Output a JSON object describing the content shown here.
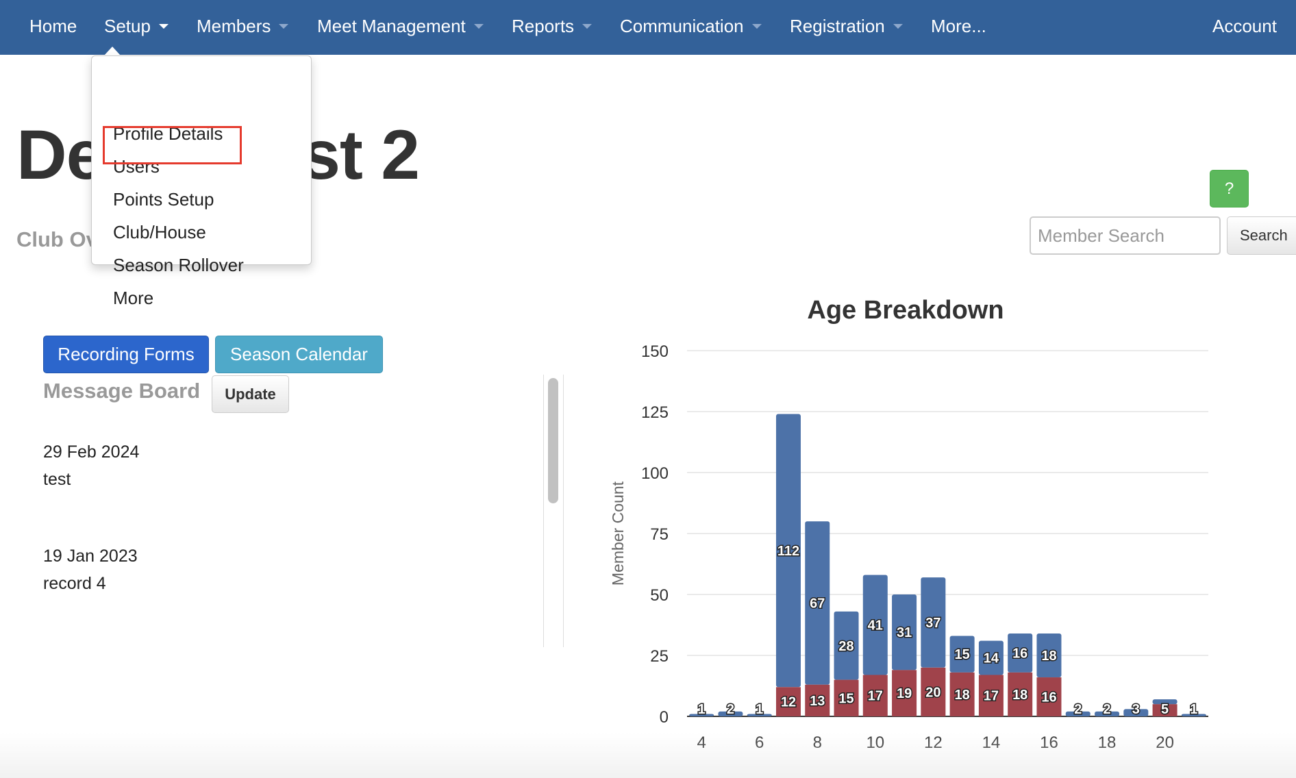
{
  "navbar": {
    "home": "Home",
    "setup": "Setup",
    "members": "Members",
    "meet_management": "Meet Management",
    "reports": "Reports",
    "communication": "Communication",
    "registration": "Registration",
    "more": "More...",
    "account": "Account"
  },
  "setup_menu": {
    "items": [
      "Profile Details",
      "Users",
      "Points Setup",
      "Club/House",
      "Season Rollover",
      "More"
    ],
    "highlighted": "Points Setup"
  },
  "page": {
    "title": "Demo Test 2",
    "subtitle": "Club Overview"
  },
  "help_button": "?",
  "search": {
    "placeholder": "Member Search",
    "button": "Search"
  },
  "buttons": {
    "recording_forms": "Recording Forms",
    "season_calendar": "Season Calendar",
    "update": "Update"
  },
  "message_board": {
    "title": "Message Board",
    "messages": [
      {
        "date": "29 Feb 2024",
        "text": "test"
      },
      {
        "date": "19 Jan 2023",
        "text": "record 4"
      }
    ]
  },
  "colors": {
    "navbar": "#336199",
    "series_blue": "#4d72a8",
    "series_red": "#a0434b",
    "help_green": "#5cb85c"
  },
  "chart_data": {
    "type": "bar",
    "stacked": true,
    "title": "Age Breakdown",
    "xlabel": "",
    "ylabel": "Member Count",
    "ylim": [
      0,
      150
    ],
    "yticks": [
      0,
      25,
      50,
      75,
      100,
      125,
      150
    ],
    "xticks": [
      4,
      6,
      8,
      10,
      12,
      14,
      16,
      18,
      20
    ],
    "x": [
      4,
      5,
      6,
      7,
      8,
      9,
      10,
      11,
      12,
      13,
      14,
      15,
      16,
      17,
      18,
      19,
      20,
      21
    ],
    "series": [
      {
        "color": "#a0434b",
        "values": [
          0,
          0,
          0,
          12,
          13,
          15,
          17,
          19,
          20,
          18,
          17,
          18,
          16,
          0,
          0,
          0,
          5,
          0
        ]
      },
      {
        "color": "#4d72a8",
        "values": [
          1,
          2,
          1,
          112,
          67,
          28,
          41,
          31,
          37,
          15,
          14,
          16,
          18,
          2,
          2,
          3,
          2,
          1
        ]
      }
    ],
    "data_labels": {
      "red": [
        "",
        "",
        "",
        "12",
        "13",
        "15",
        "17",
        "19",
        "20",
        "18",
        "17",
        "18",
        "16",
        "",
        "",
        "",
        "5",
        ""
      ],
      "blue": [
        "1",
        "2",
        "1",
        "112",
        "67",
        "28",
        "41",
        "31",
        "37",
        "15",
        "14",
        "16",
        "18",
        "2",
        "2",
        "3",
        "",
        "1"
      ]
    },
    "grid": true,
    "legend": "none"
  }
}
